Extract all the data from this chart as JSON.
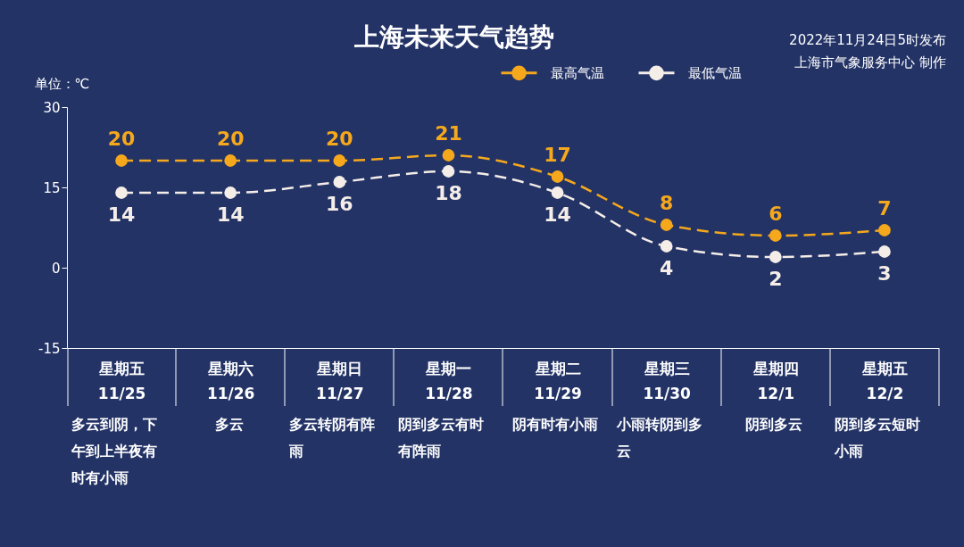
{
  "chart_data": {
    "type": "line",
    "title": "上海未来天气趋势",
    "ylabel": "单位：℃",
    "categories": [
      "星期五\n11/25",
      "星期六\n11/26",
      "星期日\n11/27",
      "星期一\n11/28",
      "星期二\n11/29",
      "星期三\n11/30",
      "星期四\n12/1",
      "星期五\n12/2"
    ],
    "series": [
      {
        "name": "最高气温",
        "color": "#f5a81c",
        "values": [
          20,
          20,
          20,
          21,
          17,
          8,
          6,
          7
        ]
      },
      {
        "name": "最低气温",
        "color": "#f4ede8",
        "values": [
          14,
          14,
          16,
          18,
          14,
          4,
          2,
          3
        ]
      }
    ],
    "ylim": [
      -15,
      30
    ],
    "yticks": [
      -15,
      0,
      15,
      30
    ],
    "legend": "top",
    "marker": "circle",
    "line_style": "dashed",
    "data_labels": true,
    "annotations": [
      "2022年11月24日5时发布",
      "上海市气象服务中心 制作",
      "多云到阴，下午到上半夜有时有小雨",
      "多云",
      "多云转阴有阵雨",
      "阴到多云有时有阵雨",
      "阴有时有小雨",
      "小雨转阴到多云",
      "阴到多云",
      "阴到多云短时小雨"
    ]
  }
}
